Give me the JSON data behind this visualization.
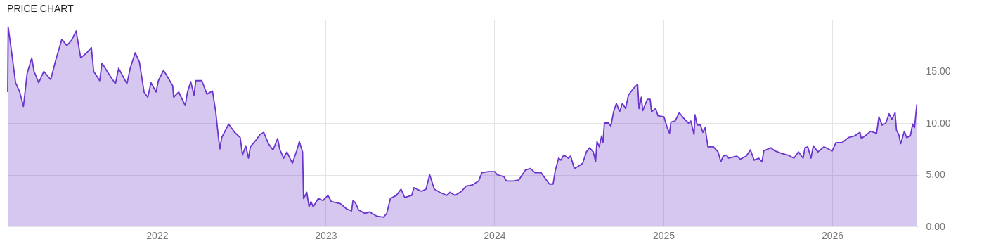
{
  "chart_data": {
    "type": "area",
    "title": "PRICE CHART",
    "x": [
      "2021-02-12",
      "2021-02-13",
      "2021-02-20",
      "2021-03-01",
      "2021-03-10",
      "2021-03-18",
      "2021-03-26",
      "2021-04-05",
      "2021-04-10",
      "2021-04-20",
      "2021-05-01",
      "2021-05-16",
      "2021-05-27",
      "2021-06-09",
      "2021-06-20",
      "2021-06-30",
      "2021-07-10",
      "2021-07-20",
      "2021-08-02",
      "2021-08-12",
      "2021-08-17",
      "2021-08-30",
      "2021-09-04",
      "2021-09-18",
      "2021-10-03",
      "2021-10-10",
      "2021-10-28",
      "2021-11-04",
      "2021-11-15",
      "2021-11-24",
      "2021-12-04",
      "2021-12-12",
      "2021-12-19",
      "2021-12-30",
      "2022-01-04",
      "2022-01-15",
      "2022-01-26",
      "2022-02-04",
      "2022-02-06",
      "2022-02-17",
      "2022-03-03",
      "2022-03-08",
      "2022-03-15",
      "2022-03-22",
      "2022-03-26",
      "2022-04-08",
      "2022-04-19",
      "2022-05-01",
      "2022-05-08",
      "2022-05-14",
      "2022-05-17",
      "2022-05-21",
      "2022-06-05",
      "2022-06-18",
      "2022-06-30",
      "2022-07-05",
      "2022-07-12",
      "2022-07-18",
      "2022-07-22",
      "2022-08-04",
      "2022-08-12",
      "2022-08-20",
      "2022-08-30",
      "2022-09-09",
      "2022-09-19",
      "2022-09-24",
      "2022-10-02",
      "2022-10-09",
      "2022-10-21",
      "2022-10-30",
      "2022-11-05",
      "2022-11-12",
      "2022-11-14",
      "2022-11-21",
      "2022-11-26",
      "2022-11-30",
      "2022-12-05",
      "2022-12-16",
      "2022-12-26",
      "2023-01-06",
      "2023-01-13",
      "2023-02-02",
      "2023-02-15",
      "2023-02-26",
      "2023-03-01",
      "2023-03-06",
      "2023-03-13",
      "2023-03-27",
      "2023-04-06",
      "2023-04-21",
      "2023-05-06",
      "2023-05-13",
      "2023-05-21",
      "2023-06-03",
      "2023-06-13",
      "2023-06-21",
      "2023-07-06",
      "2023-07-11",
      "2023-07-27",
      "2023-08-06",
      "2023-08-14",
      "2023-08-24",
      "2023-09-05",
      "2023-09-20",
      "2023-09-27",
      "2023-10-08",
      "2023-10-22",
      "2023-11-01",
      "2023-11-14",
      "2023-11-28",
      "2023-12-05",
      "2023-12-19",
      "2024-01-02",
      "2024-01-07",
      "2024-01-22",
      "2024-01-27",
      "2024-02-12",
      "2024-02-23",
      "2024-03-08",
      "2024-03-19",
      "2024-03-29",
      "2024-04-11",
      "2024-04-19",
      "2024-04-29",
      "2024-05-07",
      "2024-05-12",
      "2024-05-19",
      "2024-05-24",
      "2024-05-30",
      "2024-06-09",
      "2024-06-14",
      "2024-06-22",
      "2024-06-30",
      "2024-07-10",
      "2024-07-18",
      "2024-07-25",
      "2024-08-02",
      "2024-08-07",
      "2024-08-10",
      "2024-08-15",
      "2024-08-20",
      "2024-08-23",
      "2024-08-26",
      "2024-09-04",
      "2024-09-09",
      "2024-09-15",
      "2024-09-21",
      "2024-09-28",
      "2024-10-04",
      "2024-10-11",
      "2024-10-17",
      "2024-10-27",
      "2024-11-06",
      "2024-11-09",
      "2024-11-14",
      "2024-11-17",
      "2024-11-27",
      "2024-12-03",
      "2024-12-06",
      "2024-12-15",
      "2024-12-20",
      "2025-01-02",
      "2025-01-09",
      "2025-01-14",
      "2025-01-17",
      "2025-01-26",
      "2025-02-04",
      "2025-02-14",
      "2025-02-24",
      "2025-03-01",
      "2025-03-08",
      "2025-03-10",
      "2025-03-15",
      "2025-03-22",
      "2025-03-27",
      "2025-04-01",
      "2025-04-07",
      "2025-04-19",
      "2025-04-29",
      "2025-05-05",
      "2025-05-10",
      "2025-05-17",
      "2025-05-22",
      "2025-06-09",
      "2025-06-16",
      "2025-06-29",
      "2025-07-08",
      "2025-07-16",
      "2025-07-26",
      "2025-08-02",
      "2025-08-06",
      "2025-08-21",
      "2025-08-30",
      "2025-09-14",
      "2025-09-27",
      "2025-10-10",
      "2025-10-20",
      "2025-10-30",
      "2025-11-03",
      "2025-11-09",
      "2025-11-16",
      "2025-11-21",
      "2025-12-01",
      "2025-12-14",
      "2026-01-01",
      "2026-01-09",
      "2026-01-22",
      "2026-02-05",
      "2026-02-18",
      "2026-03-02",
      "2026-03-05",
      "2026-03-17",
      "2026-03-25",
      "2026-04-07",
      "2026-04-12",
      "2026-04-19",
      "2026-04-27",
      "2026-05-04",
      "2026-05-10",
      "2026-05-17",
      "2026-05-20",
      "2026-05-25",
      "2026-05-29",
      "2026-06-06",
      "2026-06-11",
      "2026-06-19",
      "2026-06-24",
      "2026-06-28",
      "2026-07-03"
    ],
    "series": [
      {
        "color": "#6a35cc",
        "values": [
          13.0,
          19.3,
          17.0,
          13.9,
          13.0,
          11.6,
          14.8,
          16.3,
          15.0,
          13.9,
          15.0,
          14.2,
          16.1,
          18.1,
          17.5,
          18.0,
          18.9,
          16.3,
          16.8,
          17.3,
          15.0,
          14.1,
          15.8,
          14.8,
          13.8,
          15.3,
          13.8,
          15.3,
          16.8,
          15.9,
          13.0,
          12.5,
          13.9,
          13.0,
          14.1,
          15.1,
          14.3,
          13.6,
          12.5,
          13.0,
          11.7,
          13.0,
          14.0,
          12.7,
          14.1,
          14.1,
          12.8,
          13.1,
          11.1,
          8.6,
          7.5,
          8.6,
          9.9,
          9.1,
          8.6,
          6.9,
          7.8,
          6.6,
          7.7,
          8.4,
          8.9,
          9.1,
          8.0,
          7.4,
          8.5,
          7.4,
          6.6,
          7.2,
          6.1,
          7.3,
          8.2,
          7.2,
          2.7,
          3.3,
          1.9,
          2.4,
          1.9,
          2.7,
          2.5,
          3.0,
          2.4,
          2.2,
          1.7,
          1.5,
          2.5,
          2.3,
          1.6,
          1.25,
          1.4,
          1.0,
          0.9,
          1.25,
          2.7,
          3.0,
          3.6,
          2.8,
          3.0,
          3.75,
          3.4,
          3.6,
          5.0,
          3.6,
          3.3,
          3.0,
          3.3,
          3.0,
          3.4,
          3.9,
          4.0,
          4.4,
          5.2,
          5.3,
          5.3,
          5.0,
          4.8,
          4.4,
          4.4,
          4.5,
          5.45,
          5.6,
          5.2,
          5.2,
          4.7,
          4.1,
          4.1,
          5.45,
          6.6,
          6.4,
          6.9,
          6.6,
          6.8,
          5.6,
          5.8,
          6.1,
          7.2,
          7.6,
          7.2,
          6.25,
          8.2,
          7.7,
          8.75,
          8.1,
          10.0,
          10.0,
          9.7,
          11.1,
          11.9,
          11.1,
          11.9,
          11.4,
          12.7,
          13.3,
          13.75,
          11.4,
          12.5,
          11.2,
          12.3,
          12.3,
          11.1,
          11.4,
          10.7,
          10.6,
          9.55,
          9.0,
          10.1,
          10.2,
          11.0,
          10.45,
          10.0,
          10.2,
          8.9,
          10.8,
          9.8,
          9.8,
          9.1,
          9.55,
          7.7,
          7.7,
          7.2,
          6.25,
          6.8,
          6.9,
          6.6,
          6.8,
          6.5,
          6.8,
          7.4,
          6.4,
          6.6,
          6.25,
          7.3,
          7.6,
          7.3,
          7.05,
          6.9,
          6.6,
          7.2,
          6.6,
          7.6,
          7.7,
          6.6,
          7.8,
          7.2,
          7.7,
          7.3,
          8.1,
          8.1,
          8.6,
          8.75,
          9.1,
          8.5,
          8.9,
          9.2,
          9.0,
          10.6,
          9.8,
          10.0,
          10.9,
          10.35,
          11.0,
          9.3,
          8.9,
          8.0,
          9.2,
          8.6,
          8.75,
          9.9,
          9.55,
          11.8
        ]
      }
    ],
    "xlim": [
      "2021-02-12",
      "2026-07-07"
    ],
    "xticks": [
      {
        "value": "2022-01-01",
        "label": "2022"
      },
      {
        "value": "2023-01-01",
        "label": "2023"
      },
      {
        "value": "2024-01-01",
        "label": "2024"
      },
      {
        "value": "2025-01-01",
        "label": "2025"
      },
      {
        "value": "2026-01-01",
        "label": "2026"
      }
    ],
    "ylim": [
      0,
      20
    ],
    "yticks": [
      {
        "value": 0,
        "label": "0.00"
      },
      {
        "value": 5,
        "label": "5.00"
      },
      {
        "value": 10,
        "label": "10.00"
      },
      {
        "value": 15,
        "label": "15.00"
      }
    ],
    "grid": true,
    "marker": "none",
    "line_style": "solid"
  }
}
